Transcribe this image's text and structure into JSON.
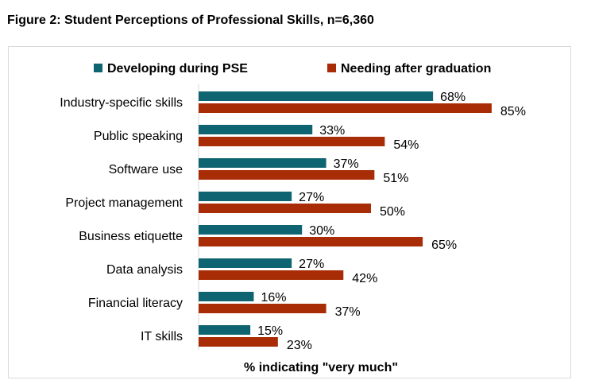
{
  "title": "Figure 2: Student Perceptions of Professional Skills, n=6,360",
  "chart_data": {
    "type": "bar",
    "orientation": "horizontal",
    "title": "Figure 2: Student Perceptions of Professional Skills, n=6,360",
    "xlabel": "% indicating \"very much\"",
    "ylabel": "",
    "xlim": [
      0,
      100
    ],
    "grid": false,
    "legend_position": "top",
    "categories": [
      "Industry-specific skills",
      "Public speaking",
      "Software use",
      "Project management",
      "Business etiquette",
      "Data analysis",
      "Financial literacy",
      "IT skills"
    ],
    "series": [
      {
        "name": "Developing during PSE",
        "color": "#0e6470",
        "values": [
          68,
          33,
          37,
          27,
          30,
          27,
          16,
          15
        ]
      },
      {
        "name": "Needing after graduation",
        "color": "#a82d06",
        "values": [
          85,
          54,
          51,
          50,
          65,
          42,
          37,
          23
        ]
      }
    ]
  }
}
